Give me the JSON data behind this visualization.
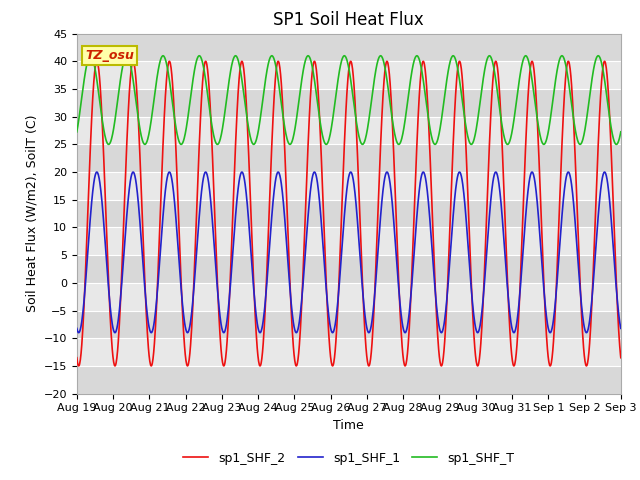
{
  "title": "SP1 Soil Heat Flux",
  "xlabel": "Time",
  "ylabel": "Soil Heat Flux (W/m2), SoilT (C)",
  "ylim": [
    -20,
    45
  ],
  "yticks": [
    -20,
    -15,
    -10,
    -5,
    0,
    5,
    10,
    15,
    20,
    25,
    30,
    35,
    40,
    45
  ],
  "x_labels": [
    "Aug 19",
    "Aug 20",
    "Aug 21",
    "Aug 22",
    "Aug 23",
    "Aug 24",
    "Aug 25",
    "Aug 26",
    "Aug 27",
    "Aug 28",
    "Aug 29",
    "Aug 30",
    "Aug 31",
    "Sep 1",
    "Sep 2",
    "Sep 3"
  ],
  "color_shf2": "#ee1111",
  "color_shf1": "#2222cc",
  "color_shft": "#22bb22",
  "bg_color": "#ffffff",
  "plot_bg": "#e8e8e8",
  "band_light": "#e8e8e8",
  "band_dark": "#d8d8d8",
  "annotation_text": "TZ_osu",
  "annotation_facecolor": "#ffffaa",
  "annotation_edgecolor": "#bbbb00",
  "annotation_textcolor": "#cc2200",
  "legend_labels": [
    "sp1_SHF_2",
    "sp1_SHF_1",
    "sp1_SHF_T"
  ],
  "title_fontsize": 12,
  "label_fontsize": 9,
  "tick_fontsize": 8,
  "shf2_base": 12.5,
  "shf2_amp": 27.5,
  "shf2_phase": 1.9,
  "shf1_base": 5.5,
  "shf1_amp": 14.5,
  "shf1_phase": 1.9,
  "shft_base": 33.0,
  "shft_amp": 8.0,
  "shft_phase": 0.8,
  "n_days": 15
}
